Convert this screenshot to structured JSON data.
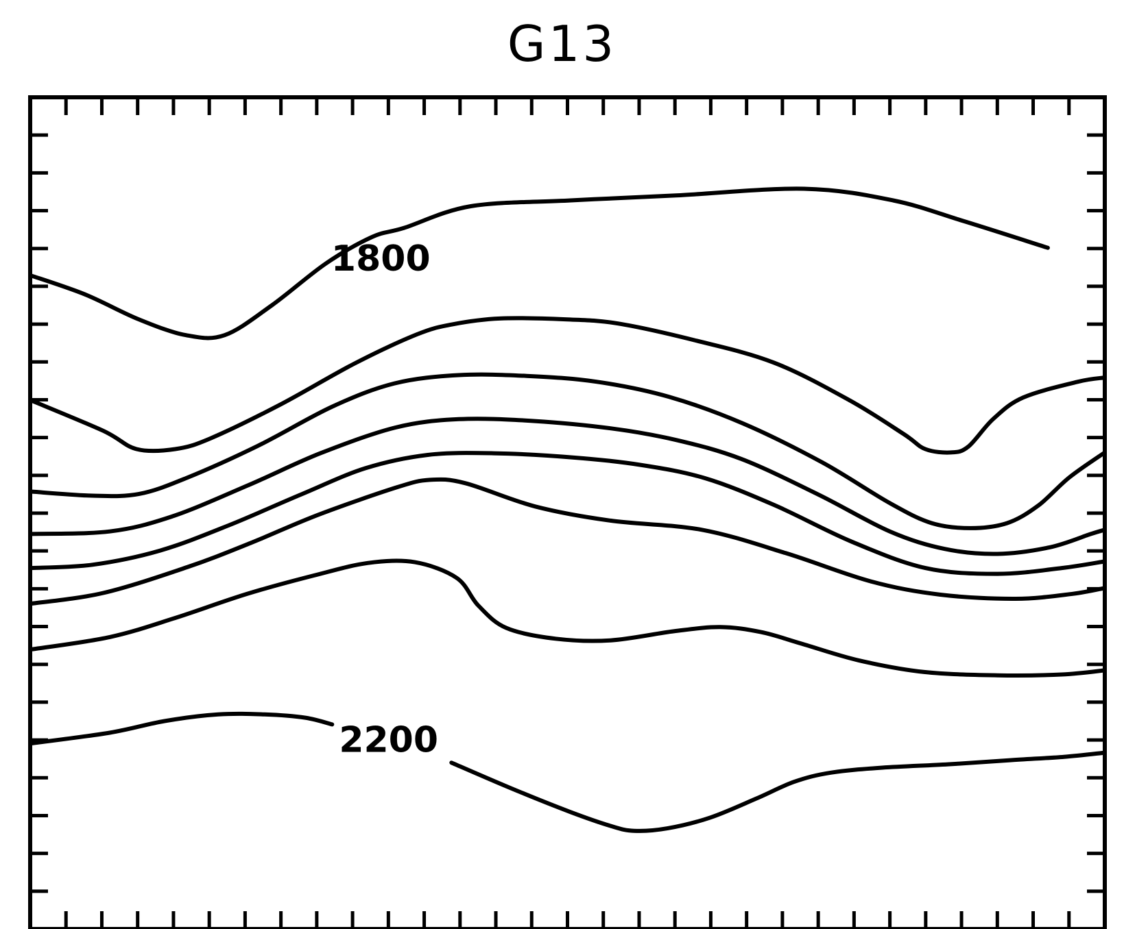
{
  "chart_data": {
    "type": "contour",
    "title": "G13",
    "xlabel": "",
    "ylabel": "",
    "grid": false,
    "x_ticks": 30,
    "y_ticks": 22,
    "contour_labels": [
      "1800",
      "2200"
    ],
    "contours": [
      {
        "label": "1800",
        "points": [
          [
            0.0,
            0.214
          ],
          [
            0.051,
            0.237
          ],
          [
            0.101,
            0.267
          ],
          [
            0.145,
            0.286
          ],
          [
            0.181,
            0.286
          ],
          [
            0.225,
            0.25
          ],
          [
            0.275,
            0.2
          ],
          [
            0.318,
            0.168
          ],
          [
            0.348,
            0.157
          ],
          [
            0.41,
            0.131
          ],
          [
            0.503,
            0.124
          ],
          [
            0.601,
            0.118
          ],
          [
            0.72,
            0.11
          ],
          [
            0.803,
            0.124
          ],
          [
            0.869,
            0.149
          ],
          [
            0.947,
            0.181
          ]
        ]
      },
      {
        "label": "",
        "points": [
          [
            0.0,
            0.364
          ],
          [
            0.068,
            0.401
          ],
          [
            0.099,
            0.423
          ],
          [
            0.135,
            0.423
          ],
          [
            0.168,
            0.41
          ],
          [
            0.232,
            0.37
          ],
          [
            0.302,
            0.32
          ],
          [
            0.36,
            0.285
          ],
          [
            0.393,
            0.273
          ],
          [
            0.437,
            0.266
          ],
          [
            0.498,
            0.267
          ],
          [
            0.547,
            0.272
          ],
          [
            0.618,
            0.292
          ],
          [
            0.692,
            0.319
          ],
          [
            0.762,
            0.364
          ],
          [
            0.813,
            0.405
          ],
          [
            0.833,
            0.423
          ],
          [
            0.857,
            0.427
          ],
          [
            0.873,
            0.42
          ],
          [
            0.896,
            0.387
          ],
          [
            0.924,
            0.361
          ],
          [
            0.975,
            0.342
          ],
          [
            1.0,
            0.337
          ]
        ]
      },
      {
        "label": "",
        "points": [
          [
            0.0,
            0.474
          ],
          [
            0.058,
            0.479
          ],
          [
            0.101,
            0.477
          ],
          [
            0.145,
            0.458
          ],
          [
            0.212,
            0.419
          ],
          [
            0.281,
            0.372
          ],
          [
            0.339,
            0.344
          ],
          [
            0.399,
            0.334
          ],
          [
            0.462,
            0.335
          ],
          [
            0.527,
            0.342
          ],
          [
            0.594,
            0.36
          ],
          [
            0.663,
            0.392
          ],
          [
            0.737,
            0.439
          ],
          [
            0.8,
            0.488
          ],
          [
            0.839,
            0.512
          ],
          [
            0.875,
            0.518
          ],
          [
            0.909,
            0.512
          ],
          [
            0.938,
            0.491
          ],
          [
            0.967,
            0.457
          ],
          [
            1.0,
            0.427
          ]
        ]
      },
      {
        "label": "",
        "points": [
          [
            0.0,
            0.525
          ],
          [
            0.074,
            0.522
          ],
          [
            0.132,
            0.504
          ],
          [
            0.202,
            0.467
          ],
          [
            0.27,
            0.428
          ],
          [
            0.34,
            0.397
          ],
          [
            0.399,
            0.387
          ],
          [
            0.466,
            0.389
          ],
          [
            0.54,
            0.398
          ],
          [
            0.601,
            0.412
          ],
          [
            0.662,
            0.435
          ],
          [
            0.734,
            0.478
          ],
          [
            0.8,
            0.522
          ],
          [
            0.851,
            0.543
          ],
          [
            0.9,
            0.549
          ],
          [
            0.949,
            0.541
          ],
          [
            0.987,
            0.525
          ],
          [
            1.0,
            0.52
          ]
        ]
      },
      {
        "label": "",
        "points": [
          [
            0.0,
            0.566
          ],
          [
            0.058,
            0.562
          ],
          [
            0.121,
            0.545
          ],
          [
            0.186,
            0.514
          ],
          [
            0.253,
            0.477
          ],
          [
            0.312,
            0.446
          ],
          [
            0.37,
            0.43
          ],
          [
            0.431,
            0.428
          ],
          [
            0.505,
            0.433
          ],
          [
            0.568,
            0.442
          ],
          [
            0.628,
            0.458
          ],
          [
            0.692,
            0.49
          ],
          [
            0.764,
            0.534
          ],
          [
            0.833,
            0.566
          ],
          [
            0.9,
            0.573
          ],
          [
            0.96,
            0.566
          ],
          [
            1.0,
            0.558
          ]
        ]
      },
      {
        "label": "",
        "points": [
          [
            0.0,
            0.609
          ],
          [
            0.068,
            0.596
          ],
          [
            0.146,
            0.565
          ],
          [
            0.205,
            0.536
          ],
          [
            0.268,
            0.502
          ],
          [
            0.341,
            0.469
          ],
          [
            0.372,
            0.46
          ],
          [
            0.405,
            0.464
          ],
          [
            0.47,
            0.492
          ],
          [
            0.54,
            0.509
          ],
          [
            0.625,
            0.52
          ],
          [
            0.703,
            0.548
          ],
          [
            0.782,
            0.582
          ],
          [
            0.847,
            0.598
          ],
          [
            0.917,
            0.603
          ],
          [
            0.97,
            0.597
          ],
          [
            1.0,
            0.59
          ]
        ]
      },
      {
        "label": "",
        "points": [
          [
            0.0,
            0.664
          ],
          [
            0.074,
            0.649
          ],
          [
            0.135,
            0.626
          ],
          [
            0.202,
            0.597
          ],
          [
            0.264,
            0.575
          ],
          [
            0.314,
            0.56
          ],
          [
            0.358,
            0.559
          ],
          [
            0.397,
            0.578
          ],
          [
            0.417,
            0.611
          ],
          [
            0.443,
            0.638
          ],
          [
            0.489,
            0.651
          ],
          [
            0.54,
            0.653
          ],
          [
            0.599,
            0.642
          ],
          [
            0.642,
            0.637
          ],
          [
            0.68,
            0.643
          ],
          [
            0.718,
            0.657
          ],
          [
            0.771,
            0.677
          ],
          [
            0.832,
            0.691
          ],
          [
            0.9,
            0.695
          ],
          [
            0.96,
            0.694
          ],
          [
            1.0,
            0.689
          ]
        ]
      },
      {
        "label": "2200",
        "points": [
          [
            0.0,
            0.777
          ],
          [
            0.074,
            0.764
          ],
          [
            0.125,
            0.75
          ],
          [
            0.175,
            0.742
          ],
          [
            0.218,
            0.742
          ],
          [
            0.256,
            0.746
          ],
          [
            0.281,
            0.754
          ]
        ]
      },
      {
        "label": "",
        "points": [
          [
            0.392,
            0.8
          ],
          [
            0.446,
            0.83
          ],
          [
            0.502,
            0.859
          ],
          [
            0.54,
            0.876
          ],
          [
            0.562,
            0.882
          ],
          [
            0.593,
            0.879
          ],
          [
            0.633,
            0.866
          ],
          [
            0.676,
            0.843
          ],
          [
            0.711,
            0.823
          ],
          [
            0.745,
            0.812
          ],
          [
            0.793,
            0.806
          ],
          [
            0.854,
            0.802
          ],
          [
            0.912,
            0.797
          ],
          [
            0.962,
            0.793
          ],
          [
            1.0,
            0.788
          ]
        ]
      }
    ]
  }
}
